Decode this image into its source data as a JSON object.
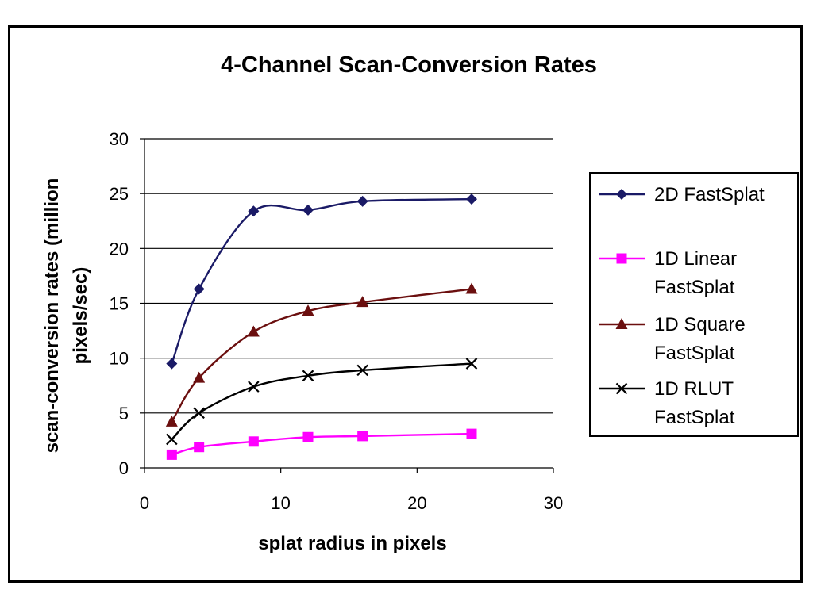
{
  "chart_data": {
    "type": "line",
    "title": "4-Channel Scan-Conversion Rates",
    "xlabel": "splat radius in pixels",
    "ylabel_lines": [
      "scan-conversion rates (million",
      "pixels/sec)"
    ],
    "xlim": [
      0,
      30
    ],
    "ylim": [
      0,
      30
    ],
    "xticks": [
      0,
      10,
      20,
      30
    ],
    "yticks": [
      0,
      5,
      10,
      15,
      20,
      25,
      30
    ],
    "grid": "horizontal",
    "legend_position": "right",
    "x": [
      2,
      4,
      8,
      12,
      16,
      24
    ],
    "series": [
      {
        "name_lines": [
          "2D FastSplat"
        ],
        "color": "#1a1a66",
        "marker": "diamond",
        "values": [
          9.5,
          16.3,
          23.4,
          23.5,
          24.3,
          24.5
        ]
      },
      {
        "name_lines": [
          "1D Linear",
          "FastSplat"
        ],
        "color": "#ff00ff",
        "marker": "square",
        "values": [
          1.2,
          1.9,
          2.4,
          2.8,
          2.9,
          3.1
        ]
      },
      {
        "name_lines": [
          "1D Square",
          "FastSplat"
        ],
        "color": "#6b0f0f",
        "marker": "triangle",
        "values": [
          4.2,
          8.2,
          12.4,
          14.3,
          15.1,
          16.3
        ]
      },
      {
        "name_lines": [
          "1D RLUT",
          "FastSplat"
        ],
        "color": "#000000",
        "marker": "x",
        "values": [
          2.6,
          5.0,
          7.4,
          8.4,
          8.9,
          9.5
        ]
      }
    ]
  }
}
